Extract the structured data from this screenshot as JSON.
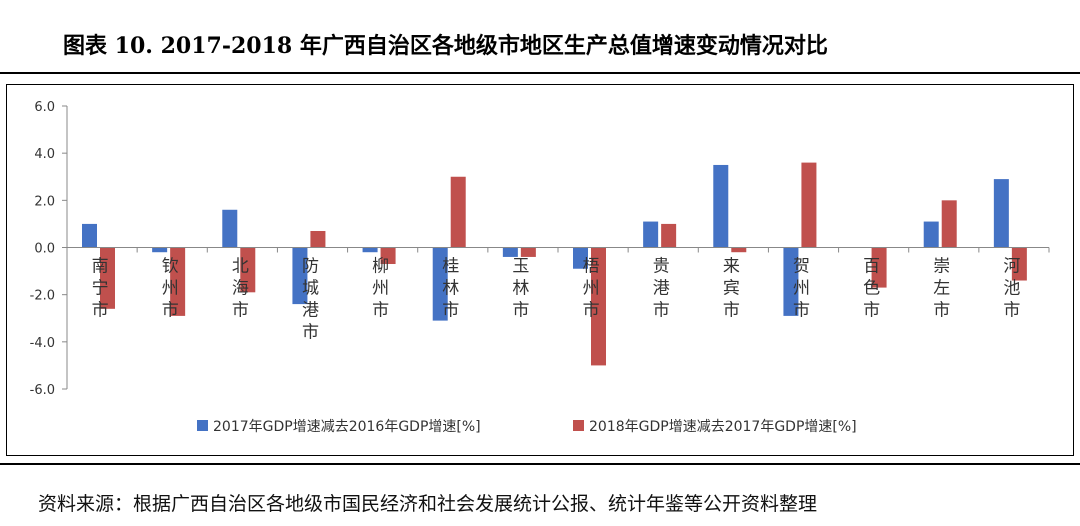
{
  "figure": {
    "title": "图表 10.   2017-2018 年广西自治区各地级市地区生产总值增速变动情况对比",
    "source": "资料来源：根据广西自治区各地级市国民经济和社会发展统计公报、统计年鉴等公开资料整理"
  },
  "chart_data": {
    "type": "bar",
    "title": "",
    "xlabel": "",
    "ylabel": "",
    "ylim": [
      -6.0,
      6.0
    ],
    "yticks": [
      "6.0",
      "4.0",
      "2.0",
      "0.0",
      "-2.0",
      "-4.0",
      "-6.0"
    ],
    "ytick_values": [
      6,
      4,
      2,
      0,
      -2,
      -4,
      -6
    ],
    "categories": [
      "南宁市",
      "钦州市",
      "北海市",
      "防城港市",
      "柳州市",
      "桂林市",
      "玉林市",
      "梧州市",
      "贵港市",
      "来宾市",
      "贺州市",
      "百色市",
      "崇左市",
      "河池市"
    ],
    "series": [
      {
        "name": "2017年GDP增速减去2016年GDP增速[%]",
        "color": "#4472C4",
        "values": [
          1.0,
          -0.2,
          1.6,
          -2.4,
          -0.2,
          -3.1,
          -0.4,
          -0.9,
          1.1,
          3.5,
          -2.9,
          0.0,
          1.1,
          2.9
        ]
      },
      {
        "name": "2018年GDP增速减去2017年GDP增速[%]",
        "color": "#C0504D",
        "values": [
          -2.6,
          -2.9,
          -1.9,
          0.7,
          -0.7,
          3.0,
          -0.4,
          -5.0,
          1.0,
          -0.2,
          3.6,
          -1.7,
          2.0,
          -1.4
        ]
      }
    ],
    "grid": false,
    "legend_position": "bottom"
  }
}
